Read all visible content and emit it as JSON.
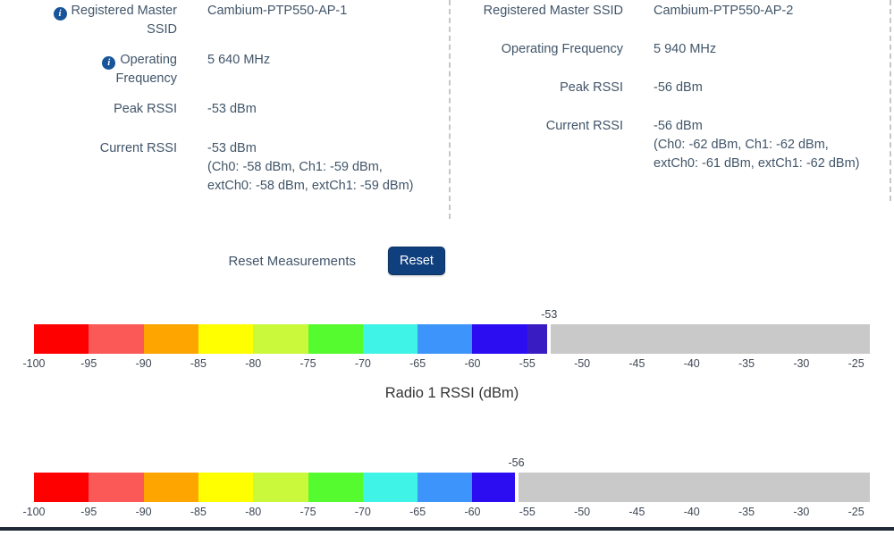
{
  "panels": [
    {
      "name": "radio-1",
      "rows": [
        {
          "label": "Registered Master SSID",
          "value": "Cambium-PTP550-AP-1",
          "info": true
        },
        {
          "label": "Operating Frequency",
          "value": "5 640 MHz",
          "info": true
        },
        {
          "label": "Peak RSSI",
          "value": "-53 dBm",
          "info": false
        },
        {
          "label": "Current RSSI",
          "value": "-53 dBm",
          "info": false,
          "detail_lines": [
            "(Ch0: -58 dBm, Ch1: -59 dBm,",
            "extCh0: -58 dBm, extCh1: -59 dBm)"
          ]
        }
      ]
    },
    {
      "name": "radio-2",
      "rows": [
        {
          "label": "Registered Master SSID",
          "value": "Cambium-PTP550-AP-2",
          "info": false
        },
        {
          "label": "Operating Frequency",
          "value": "5 940 MHz",
          "info": false
        },
        {
          "label": "Peak RSSI",
          "value": "-56 dBm",
          "info": false
        },
        {
          "label": "Current RSSI",
          "value": "-56 dBm",
          "info": false,
          "detail_lines": [
            "(Ch0: -62 dBm, Ch1: -62 dBm,",
            "extCh0: -61 dBm, extCh1: -62 dBm)"
          ]
        }
      ]
    }
  ],
  "reset": {
    "label": "Reset Measurements",
    "button_label": "Reset"
  },
  "colors": {
    "text": "#415569",
    "info_icon": "#17549a",
    "button_bg": "#103f7d",
    "gauge_empty": "#c9c9c9",
    "gauge_marker": "#7b3f9b"
  },
  "chart_data": [
    {
      "type": "bar",
      "subtype": "rssi-gauge",
      "title": "Radio 1 RSSI (dBm)",
      "axis_min": -100,
      "axis_max": -23.75,
      "segment_span": 5,
      "ticks": [
        -100,
        -95,
        -90,
        -85,
        -80,
        -75,
        -70,
        -65,
        -60,
        -55,
        -50,
        -45,
        -40,
        -35,
        -30,
        -25
      ],
      "value": -53,
      "value_label": "-53",
      "segment_colors": [
        "#ff0000",
        "#fb5858",
        "#ffa500",
        "#ffff00",
        "#caf93c",
        "#55fb2e",
        "#3ff3e6",
        "#3d95fb",
        "#2c0df2",
        "#3a1dc2"
      ],
      "empty_color": "#c9c9c9",
      "marker_color": "#7b3f9b"
    },
    {
      "type": "bar",
      "subtype": "rssi-gauge",
      "title": "",
      "axis_min": -100,
      "axis_max": -23.75,
      "segment_span": 5,
      "ticks": [
        -100,
        -95,
        -90,
        -85,
        -80,
        -75,
        -70,
        -65,
        -60,
        -55,
        -50,
        -45,
        -40,
        -35,
        -30,
        -25
      ],
      "value": -56,
      "value_label": "-56",
      "segment_colors": [
        "#ff0000",
        "#fb5858",
        "#ffa500",
        "#ffff00",
        "#caf93c",
        "#55fb2e",
        "#3ff3e6",
        "#3d95fb",
        "#2c0df2",
        "#3a1dc2"
      ],
      "empty_color": "#c9c9c9",
      "marker_color": "#7b3f9b"
    }
  ]
}
